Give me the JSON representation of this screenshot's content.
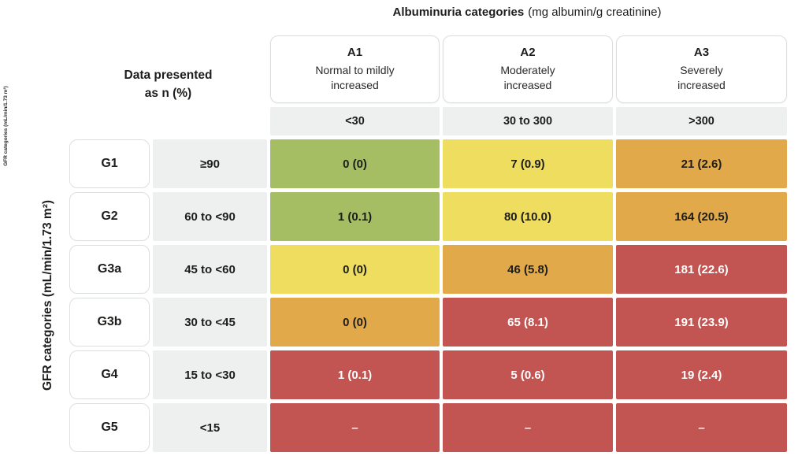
{
  "chart_data": {
    "type": "heatmap",
    "title": {
      "bold": "Albuminuria categories",
      "normal": "(mg albumin/g creatinine)"
    },
    "row_axis": {
      "label": "GFR categories (mL/min/1.73 m²)",
      "small_label": "GFR categories (mL/min/1.73 m²)"
    },
    "corner_note": {
      "line1": "Data presented",
      "line2": "as n (%)"
    },
    "columns": [
      {
        "code": "A1",
        "desc_line1": "Normal to mildly",
        "desc_line2": "increased",
        "range": "<30"
      },
      {
        "code": "A2",
        "desc_line1": "Moderately",
        "desc_line2": "increased",
        "range": "30 to 300"
      },
      {
        "code": "A3",
        "desc_line1": "Severely",
        "desc_line2": "increased",
        "range": ">300"
      }
    ],
    "rows": [
      {
        "code": "G1",
        "range": "≥90",
        "cells": [
          {
            "value": "0 (0)",
            "risk": "green"
          },
          {
            "value": "7 (0.9)",
            "risk": "yellow"
          },
          {
            "value": "21 (2.6)",
            "risk": "orange"
          }
        ]
      },
      {
        "code": "G2",
        "range": "60 to <90",
        "cells": [
          {
            "value": "1 (0.1)",
            "risk": "green"
          },
          {
            "value": "80 (10.0)",
            "risk": "yellow"
          },
          {
            "value": "164 (20.5)",
            "risk": "orange"
          }
        ]
      },
      {
        "code": "G3a",
        "range": "45 to <60",
        "cells": [
          {
            "value": "0 (0)",
            "risk": "yellow"
          },
          {
            "value": "46 (5.8)",
            "risk": "orange"
          },
          {
            "value": "181 (22.6)",
            "risk": "red"
          }
        ]
      },
      {
        "code": "G3b",
        "range": "30 to <45",
        "cells": [
          {
            "value": "0 (0)",
            "risk": "orange"
          },
          {
            "value": "65 (8.1)",
            "risk": "red"
          },
          {
            "value": "191 (23.9)",
            "risk": "red"
          }
        ]
      },
      {
        "code": "G4",
        "range": "15 to <30",
        "cells": [
          {
            "value": "1 (0.1)",
            "risk": "red"
          },
          {
            "value": "5 (0.6)",
            "risk": "red"
          },
          {
            "value": "19 (2.4)",
            "risk": "red"
          }
        ]
      },
      {
        "code": "G5",
        "range": "<15",
        "cells": [
          {
            "value": "–",
            "risk": "red"
          },
          {
            "value": "–",
            "risk": "red"
          },
          {
            "value": "–",
            "risk": "red"
          }
        ]
      }
    ],
    "risk_colors": {
      "green": "#a5be64",
      "yellow": "#eedd5f",
      "orange": "#e2a94a",
      "red": "#c25451"
    }
  }
}
